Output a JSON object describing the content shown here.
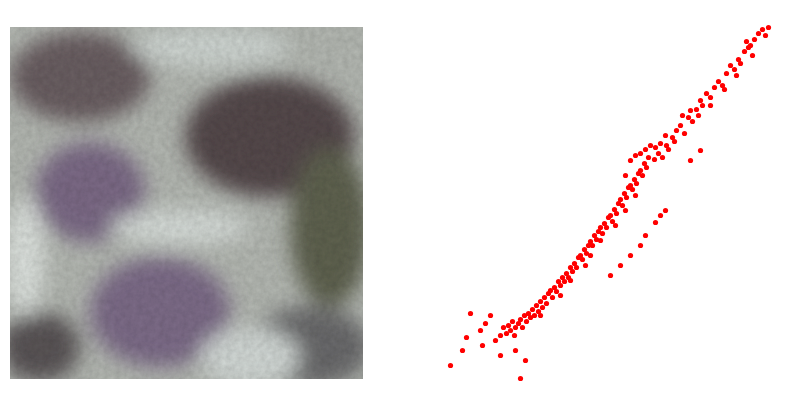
{
  "chart_data": {
    "type": "scatter",
    "color": "#ff0000",
    "marker": "circle",
    "tick_labels": false,
    "xlim": [
      0,
      340
    ],
    "ylim": [
      0,
      365
    ],
    "x": [
      10,
      22,
      26,
      40,
      45,
      30,
      42,
      80,
      85,
      60,
      55,
      75,
      50,
      60,
      63,
      66,
      68,
      70,
      72,
      74,
      75,
      78,
      80,
      82,
      84,
      86,
      88,
      90,
      92,
      94,
      96,
      98,
      100,
      102,
      104,
      106,
      108,
      110,
      112,
      114,
      116,
      118,
      120,
      122,
      124,
      126,
      128,
      130,
      132,
      134,
      136,
      138,
      140,
      142,
      144,
      146,
      148,
      150,
      152,
      154,
      156,
      158,
      160,
      162,
      164,
      166,
      168,
      170,
      172,
      174,
      176,
      178,
      180,
      182,
      184,
      186,
      188,
      190,
      192,
      194,
      196,
      198,
      200,
      202,
      204,
      206,
      208,
      185,
      190,
      195,
      200,
      205,
      210,
      215,
      220,
      225,
      228,
      232,
      236,
      240,
      244,
      248,
      252,
      256,
      260,
      214,
      218,
      222,
      226,
      234,
      242,
      250,
      258,
      262,
      266,
      270,
      274,
      278,
      282,
      286,
      290,
      294,
      298,
      300,
      304,
      308,
      310,
      314,
      318,
      322,
      325,
      328,
      312,
      306,
      296,
      284,
      270,
      225,
      215,
      205,
      200,
      220,
      190,
      180,
      170,
      260,
      250,
      150,
      160,
      120,
      100,
      130,
      145,
      175,
      185,
      195
    ],
    "values": [
      20,
      35,
      48,
      55,
      62,
      72,
      40,
      7,
      25,
      30,
      45,
      35,
      70,
      50,
      58,
      52,
      60,
      55,
      64,
      50,
      58,
      62,
      66,
      58,
      70,
      64,
      72,
      68,
      76,
      70,
      80,
      74,
      84,
      78,
      88,
      82,
      92,
      95,
      88,
      98,
      94,
      104,
      100,
      108,
      104,
      112,
      108,
      118,
      114,
      122,
      118,
      128,
      130,
      126,
      136,
      132,
      140,
      144,
      140,
      150,
      146,
      154,
      158,
      152,
      162,
      158,
      168,
      170,
      164,
      176,
      172,
      182,
      186,
      180,
      192,
      188,
      198,
      200,
      196,
      206,
      202,
      212,
      215,
      210,
      222,
      218,
      228,
      210,
      225,
      230,
      232,
      236,
      240,
      238,
      242,
      250,
      236,
      248,
      255,
      260,
      252,
      268,
      264,
      276,
      285,
      226,
      232,
      228,
      240,
      244,
      270,
      275,
      270,
      280,
      292,
      288,
      298,
      304,
      300,
      312,
      320,
      316,
      326,
      322,
      334,
      338,
      340,
      346,
      352,
      356,
      350,
      358,
      330,
      344,
      310,
      296,
      280,
      175,
      163,
      150,
      140,
      170,
      130,
      120,
      110,
      235,
      225,
      130,
      145,
      90,
      70,
      105,
      120,
      160,
      175,
      190
    ]
  }
}
